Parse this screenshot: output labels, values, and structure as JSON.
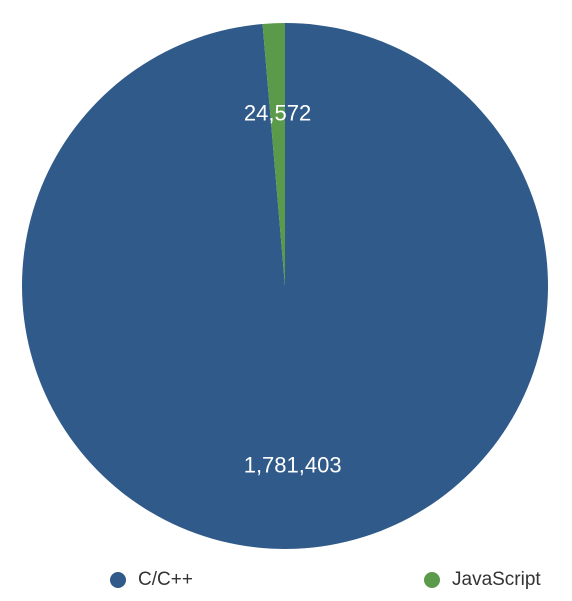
{
  "chart_data": {
    "type": "pie",
    "title": "",
    "categories": [
      "C/C++",
      "JavaScript"
    ],
    "values": [
      1781403,
      24572
    ],
    "value_labels": [
      "1,781,403",
      "24,572"
    ],
    "colors": [
      "#305a89",
      "#5b9a4a"
    ],
    "legend_position": "bottom",
    "start_angle": "12 o'clock, clockwise"
  },
  "legend": {
    "items": [
      {
        "label": "C/C++",
        "color": "#305a89"
      },
      {
        "label": "JavaScript",
        "color": "#5b9a4a"
      }
    ]
  }
}
